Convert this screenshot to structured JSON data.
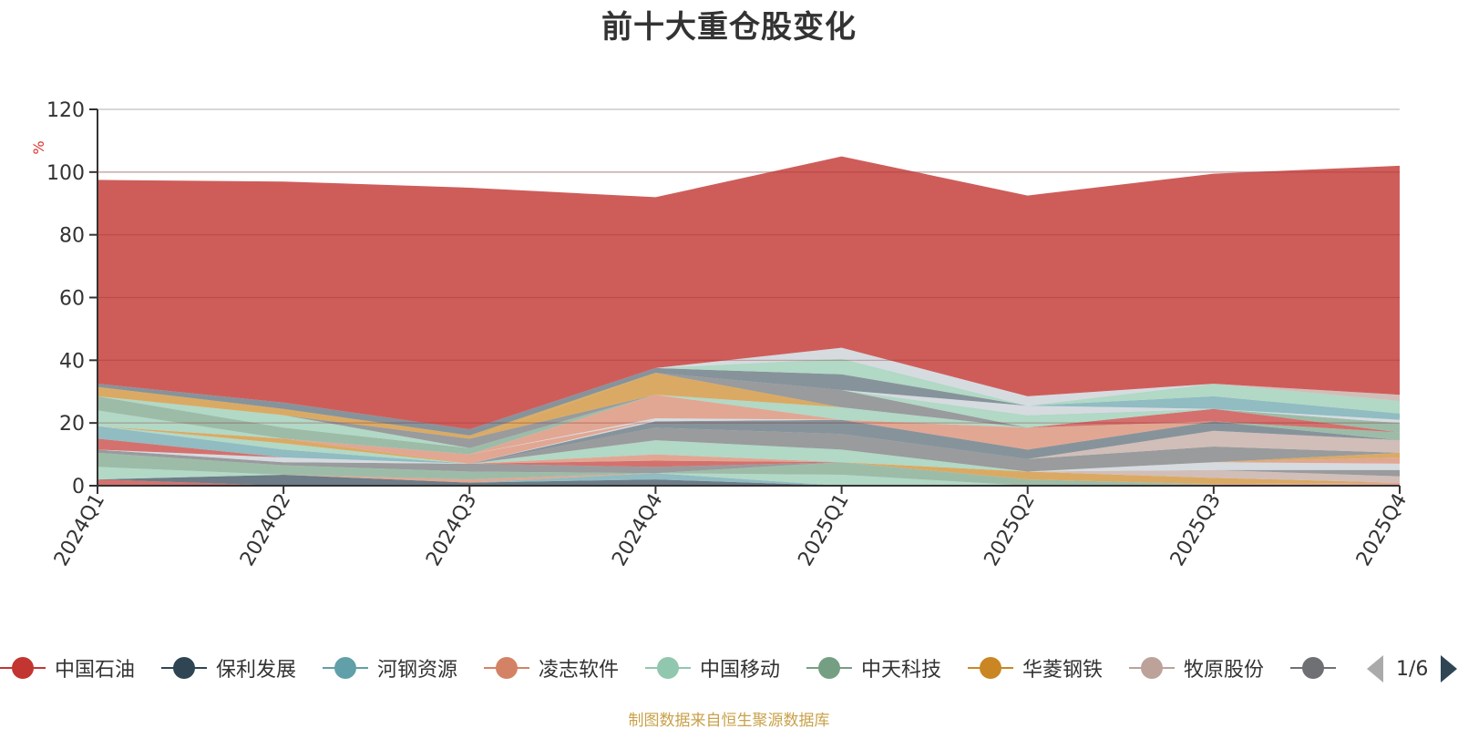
{
  "title": "前十大重仓股变化",
  "source_note": "制图数据来自恒生聚源数据库",
  "legend_page": "1/6",
  "chart_data": {
    "type": "area",
    "stacked": true,
    "title": "前十大重仓股变化",
    "ylabel": "%",
    "ylim": [
      0,
      120
    ],
    "yticks": [
      "0",
      "20",
      "40",
      "60",
      "80",
      "100",
      "120"
    ],
    "grid": true,
    "legend_position": "bottom",
    "x": [
      "2024Q1",
      "2024Q2",
      "2024Q3",
      "2024Q4",
      "2025Q1",
      "2025Q2",
      "2025Q3",
      "2025Q4"
    ],
    "series": [
      {
        "color": "#c23531",
        "opacity": 0.7,
        "values": [
          2,
          0,
          0,
          0,
          0,
          0,
          0,
          0
        ]
      },
      {
        "color": "#2f4554",
        "opacity": 0.7,
        "values": [
          0,
          3.5,
          1,
          2,
          0,
          0,
          0,
          0
        ]
      },
      {
        "color": "#61a0a8",
        "opacity": 0.7,
        "values": [
          0,
          0,
          0,
          2,
          0,
          0,
          0,
          0
        ]
      },
      {
        "color": "#d48265",
        "opacity": 0.7,
        "values": [
          0,
          0,
          1,
          0,
          0,
          0,
          0.5,
          1
        ]
      },
      {
        "color": "#91c7ae",
        "opacity": 0.7,
        "values": [
          4,
          0,
          0,
          0,
          3.5,
          0,
          0,
          0
        ]
      },
      {
        "color": "#749f83",
        "opacity": 0.7,
        "values": [
          4.5,
          3,
          2.5,
          0,
          4,
          2,
          0,
          0
        ]
      },
      {
        "color": "#ca8622",
        "opacity": 0.7,
        "values": [
          0,
          0,
          0,
          0,
          0,
          2.5,
          2,
          0
        ]
      },
      {
        "color": "#bda29a",
        "opacity": 0.7,
        "values": [
          0,
          0,
          0,
          0,
          0,
          0,
          2.5,
          2
        ]
      },
      {
        "color": "#6e7074",
        "opacity": 0.7,
        "values": [
          1,
          1,
          2.5,
          2,
          0,
          0,
          0,
          2
        ]
      },
      {
        "color": "#c4ccd3",
        "opacity": 0.7,
        "values": [
          0,
          1.5,
          0,
          0,
          0,
          0,
          2.5,
          2
        ]
      },
      {
        "color": "#c23531",
        "opacity": 0.7,
        "values": [
          0,
          0,
          0,
          2,
          0,
          0,
          0,
          0
        ]
      },
      {
        "color": "#d48265",
        "opacity": 0.7,
        "values": [
          0,
          0,
          0,
          2,
          0,
          0,
          0,
          2
        ]
      },
      {
        "color": "#91c7ae",
        "opacity": 0.7,
        "values": [
          0,
          0,
          0,
          4.5,
          4,
          0,
          0,
          0
        ]
      },
      {
        "color": "#ca8622",
        "opacity": 0.7,
        "values": [
          0,
          0,
          0,
          0,
          0,
          0,
          0,
          1.5
        ]
      },
      {
        "color": "#6e7074",
        "opacity": 0.7,
        "values": [
          0,
          0,
          0,
          4,
          5,
          4,
          5,
          0
        ]
      },
      {
        "color": "#bda29a",
        "opacity": 0.7,
        "values": [
          0,
          0,
          0,
          0,
          0,
          0,
          5,
          4
        ]
      },
      {
        "color": "#546570",
        "opacity": 0.7,
        "values": [
          0,
          0,
          0,
          2,
          4.5,
          3,
          3,
          0
        ]
      },
      {
        "color": "#c4ccd3",
        "opacity": 0.7,
        "values": [
          0,
          0,
          0,
          0.5,
          0,
          0,
          0,
          0
        ]
      },
      {
        "color": "#749f83",
        "opacity": 0.7,
        "values": [
          0,
          0,
          0,
          0,
          0,
          0,
          0,
          2.5
        ]
      },
      {
        "color": "#c23531",
        "opacity": 0.7,
        "values": [
          3.5,
          0,
          0,
          0,
          0,
          0,
          0,
          0
        ]
      },
      {
        "color": "#61a0a8",
        "opacity": 0.7,
        "values": [
          4,
          2.5,
          0,
          0,
          0,
          0,
          0,
          0
        ]
      },
      {
        "color": "#91c7ae",
        "opacity": 0.7,
        "values": [
          0,
          2,
          0,
          0,
          0,
          0,
          0,
          0
        ]
      },
      {
        "color": "#ca8622",
        "opacity": 0.7,
        "values": [
          0,
          1.5,
          0,
          0,
          0,
          0,
          0,
          0
        ]
      },
      {
        "color": "#d48265",
        "opacity": 0.7,
        "values": [
          0,
          0,
          3,
          0,
          0,
          0,
          0,
          0
        ]
      },
      {
        "color": "#c4ccd3",
        "opacity": 0.7,
        "values": [
          0,
          0,
          0,
          0.5,
          0,
          0,
          0,
          0
        ]
      },
      {
        "color": "#d48265",
        "opacity": 0.7,
        "values": [
          0,
          0,
          0,
          7.5,
          0,
          0,
          0,
          0
        ]
      },
      {
        "color": "#d48265",
        "opacity": 0.7,
        "values": [
          0,
          0,
          0,
          0,
          0,
          7,
          0,
          0
        ]
      },
      {
        "color": "#c23531",
        "opacity": 0.7,
        "values": [
          0,
          0,
          0,
          0,
          0,
          0,
          4,
          0
        ]
      },
      {
        "color": "#749f83",
        "opacity": 0.7,
        "values": [
          0,
          0,
          0,
          0,
          0,
          0,
          0,
          3
        ]
      },
      {
        "color": "#c4ccd3",
        "opacity": 0.7,
        "values": [
          0,
          0,
          0,
          0,
          0,
          0,
          0,
          1
        ]
      },
      {
        "color": "#91c7ae",
        "opacity": 0.7,
        "values": [
          5,
          0,
          0,
          0,
          4,
          0,
          0,
          0
        ]
      },
      {
        "color": "#749f83",
        "opacity": 0.7,
        "values": [
          4.5,
          3.5,
          2,
          0,
          0,
          0,
          0,
          0
        ]
      },
      {
        "color": "#91c7ae",
        "opacity": 0.7,
        "values": [
          0,
          4,
          0,
          0,
          0,
          0,
          0,
          0
        ]
      },
      {
        "color": "#6e7074",
        "opacity": 0.7,
        "values": [
          0,
          0,
          3,
          0,
          0,
          0,
          0,
          0
        ]
      },
      {
        "color": "#ca8622",
        "opacity": 0.7,
        "values": [
          0,
          0,
          0,
          7,
          0,
          0,
          0,
          0
        ]
      },
      {
        "color": "#6e7074",
        "opacity": 0.7,
        "values": [
          0,
          0,
          0,
          0,
          5.5,
          0,
          0,
          0
        ]
      },
      {
        "color": "#91c7ae",
        "opacity": 0.7,
        "values": [
          0,
          0,
          0,
          0,
          0,
          4,
          0,
          0
        ]
      },
      {
        "color": "#c4ccd3",
        "opacity": 0.7,
        "values": [
          0,
          0,
          0,
          0,
          0,
          3,
          0,
          0
        ]
      },
      {
        "color": "#61a0a8",
        "opacity": 0.7,
        "values": [
          0,
          0,
          0,
          0,
          0,
          0,
          4,
          2
        ]
      },
      {
        "color": "#91c7ae",
        "opacity": 0.7,
        "values": [
          0,
          0,
          0,
          0,
          0,
          0,
          4,
          4
        ]
      },
      {
        "color": "#ca8622",
        "opacity": 0.7,
        "values": [
          3,
          2,
          1,
          0,
          0,
          0,
          0,
          0
        ]
      },
      {
        "color": "#546570",
        "opacity": 0.7,
        "values": [
          1,
          2,
          2,
          1.5,
          5,
          0,
          0,
          0
        ]
      },
      {
        "color": "#91c7ae",
        "opacity": 0.7,
        "values": [
          0,
          0,
          0,
          0,
          5,
          0,
          0,
          0
        ]
      },
      {
        "color": "#c4ccd3",
        "opacity": 0.7,
        "values": [
          0,
          0,
          0,
          0,
          3.5,
          3,
          0,
          0
        ]
      },
      {
        "color": "#bda29a",
        "opacity": 0.7,
        "values": [
          0,
          0,
          0,
          0,
          0,
          0,
          0,
          2
        ]
      },
      {
        "color": "#c23531",
        "opacity": 0.8,
        "values": [
          65,
          70.5,
          77,
          54.5,
          61,
          64,
          67,
          73
        ]
      }
    ]
  },
  "legend": [
    {
      "label": "中国石油",
      "color": "#c23531"
    },
    {
      "label": "保利发展",
      "color": "#2f4554"
    },
    {
      "label": "河钢资源",
      "color": "#61a0a8"
    },
    {
      "label": "凌志软件",
      "color": "#d48265"
    },
    {
      "label": "中国移动",
      "color": "#91c7ae"
    },
    {
      "label": "中天科技",
      "color": "#749f83"
    },
    {
      "label": "华菱钢铁",
      "color": "#ca8622"
    },
    {
      "label": "牧原股份",
      "color": "#bda29a"
    },
    {
      "label": "：",
      "color": "#6e7074"
    }
  ]
}
